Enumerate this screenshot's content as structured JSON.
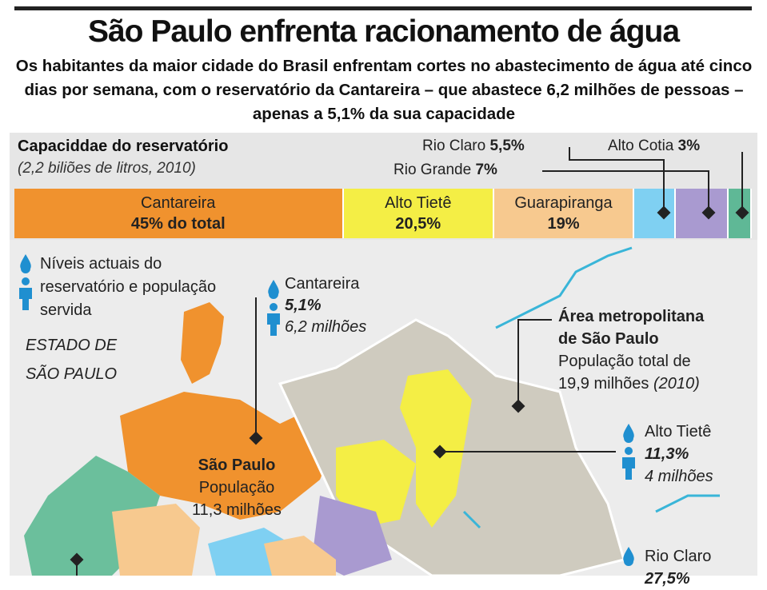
{
  "header": {
    "title": "São Paulo enfrenta racionamento de água",
    "subtitle": "Os habitantes da maior cidade do Brasil enfrentam cortes no abastecimento de água até cinco dias por semana, com o reservatório da Cantareira – que abastece 6,2 milhões de pessoas – apenas a 5,1% da sua capacidade"
  },
  "capacity": {
    "title": "Capaciddae do reservatório",
    "note": "(2,2 biliões de litros, 2010)",
    "segments": [
      {
        "name": "Cantareira",
        "value": 45,
        "value_label": "45% do total",
        "color": "#f0922e"
      },
      {
        "name": "Alto Tietê",
        "value": 20.5,
        "value_label": "20,5%",
        "color": "#f4ee45"
      },
      {
        "name": "Guarapiranga",
        "value": 19,
        "value_label": "19%",
        "color": "#f7c98f"
      },
      {
        "name": "Rio Claro",
        "value": 5.5,
        "value_label": "5,5%",
        "color": "#7fd0f2"
      },
      {
        "name": "Rio Grande",
        "value": 7,
        "value_label": "7%",
        "color": "#a99ad0"
      },
      {
        "name": "Alto Cotia",
        "value": 3,
        "value_label": "3%",
        "color": "#5fb896"
      }
    ]
  },
  "map": {
    "legend": [
      "Níveis actuais do",
      "reservatório e população",
      "servida"
    ],
    "state_label": [
      "ESTADO DE",
      "SÃO PAULO"
    ],
    "metro": {
      "title": [
        "Área metropolitana",
        "de São Paulo"
      ],
      "population": [
        "População total de",
        "19,9 milhões"
      ],
      "year": "(2010)"
    },
    "city": {
      "name": "São Paulo",
      "population_label": "População",
      "population": "11,3 milhões"
    },
    "reservoirs": [
      {
        "name": "Cantareira",
        "level": "5,1%",
        "population": "6,2 milhões"
      },
      {
        "name": "Alto Tietê",
        "level": "11,3%",
        "population": "4 milhões"
      },
      {
        "name": "Rio Claro",
        "level": "27,5%"
      }
    ]
  }
}
